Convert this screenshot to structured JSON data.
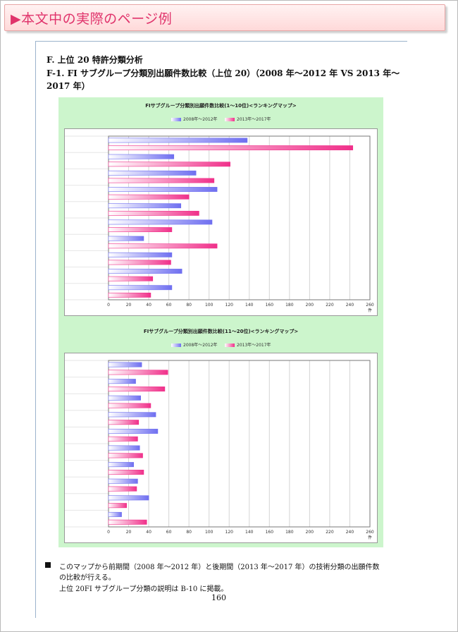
{
  "banner": {
    "title": "▶本文中の実際のページ例"
  },
  "section": {
    "heading": "F. 上位 20 特許分類分析",
    "subheading_line1": "F-1. FI サブグループ分類別出願件数比較（上位 20）（2008 年～2012 年 VS 2013 年～",
    "subheading_line2": "2017 年）"
  },
  "colors": {
    "series1": "#6f6ff0",
    "series2": "#f0308a",
    "panel": "#ccf5cc"
  },
  "chart_data": [
    {
      "type": "bar",
      "orientation": "horizontal",
      "title": "FIサブグループ分類別出願件数比較(1～10位)<ランキングマップ>",
      "xlabel": "件",
      "xlim": [
        0,
        260
      ],
      "xticks": [
        0,
        20,
        40,
        60,
        80,
        100,
        120,
        140,
        160,
        180,
        200,
        220,
        240,
        260
      ],
      "series": [
        {
          "name": "2008年～2012年",
          "values": [
            138,
            65,
            87,
            108,
            72,
            103,
            35,
            63,
            73,
            63
          ]
        },
        {
          "name": "2013年～2017年",
          "values": [
            243,
            121,
            105,
            80,
            90,
            63,
            108,
            62,
            44,
            42
          ]
        }
      ]
    },
    {
      "type": "bar",
      "orientation": "horizontal",
      "title": "FIサブグループ分類別出願件数比較(11～20位)<ランキングマップ>",
      "xlabel": "件",
      "xlim": [
        0,
        260
      ],
      "xticks": [
        0,
        20,
        40,
        60,
        80,
        100,
        120,
        140,
        160,
        180,
        200,
        220,
        240,
        260
      ],
      "series": [
        {
          "name": "2008年～2012年",
          "values": [
            33,
            27,
            32,
            47,
            49,
            31,
            25,
            29,
            40,
            13
          ]
        },
        {
          "name": "2013年～2017年",
          "values": [
            59,
            56,
            42,
            30,
            29,
            34,
            35,
            28,
            18,
            38
          ]
        }
      ]
    }
  ],
  "note": {
    "line1": "このマップから前期間（2008 年～2012 年）と後期間（2013 年～2017 年）の技術分類の出願件数",
    "line2": "の比較が行える。",
    "line3": "上位 20FI サブグループ分類の説明は B-10 に掲載。"
  },
  "page_number": "160"
}
